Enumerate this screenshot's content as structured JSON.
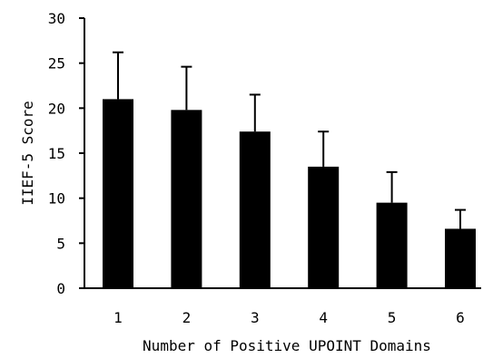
{
  "chart_data": {
    "type": "bar",
    "title": "",
    "xlabel": "Number of Positive UPOINT Domains",
    "ylabel": "IIEF-5 Score",
    "categories": [
      "1",
      "2",
      "3",
      "4",
      "5",
      "6"
    ],
    "values": [
      21.0,
      19.8,
      17.4,
      13.5,
      9.5,
      6.6
    ],
    "error_upper": [
      5.2,
      4.8,
      4.1,
      3.9,
      3.4,
      2.1
    ],
    "ylim": [
      0,
      30
    ],
    "yticks": [
      "0",
      "5",
      "10",
      "15",
      "20",
      "25",
      "30"
    ],
    "ytick_values": [
      0,
      5,
      10,
      15,
      20,
      25,
      30
    ],
    "grid": false,
    "colors": {
      "bar": "#000000",
      "axis": "#000000",
      "error_bar": "#000000"
    }
  }
}
